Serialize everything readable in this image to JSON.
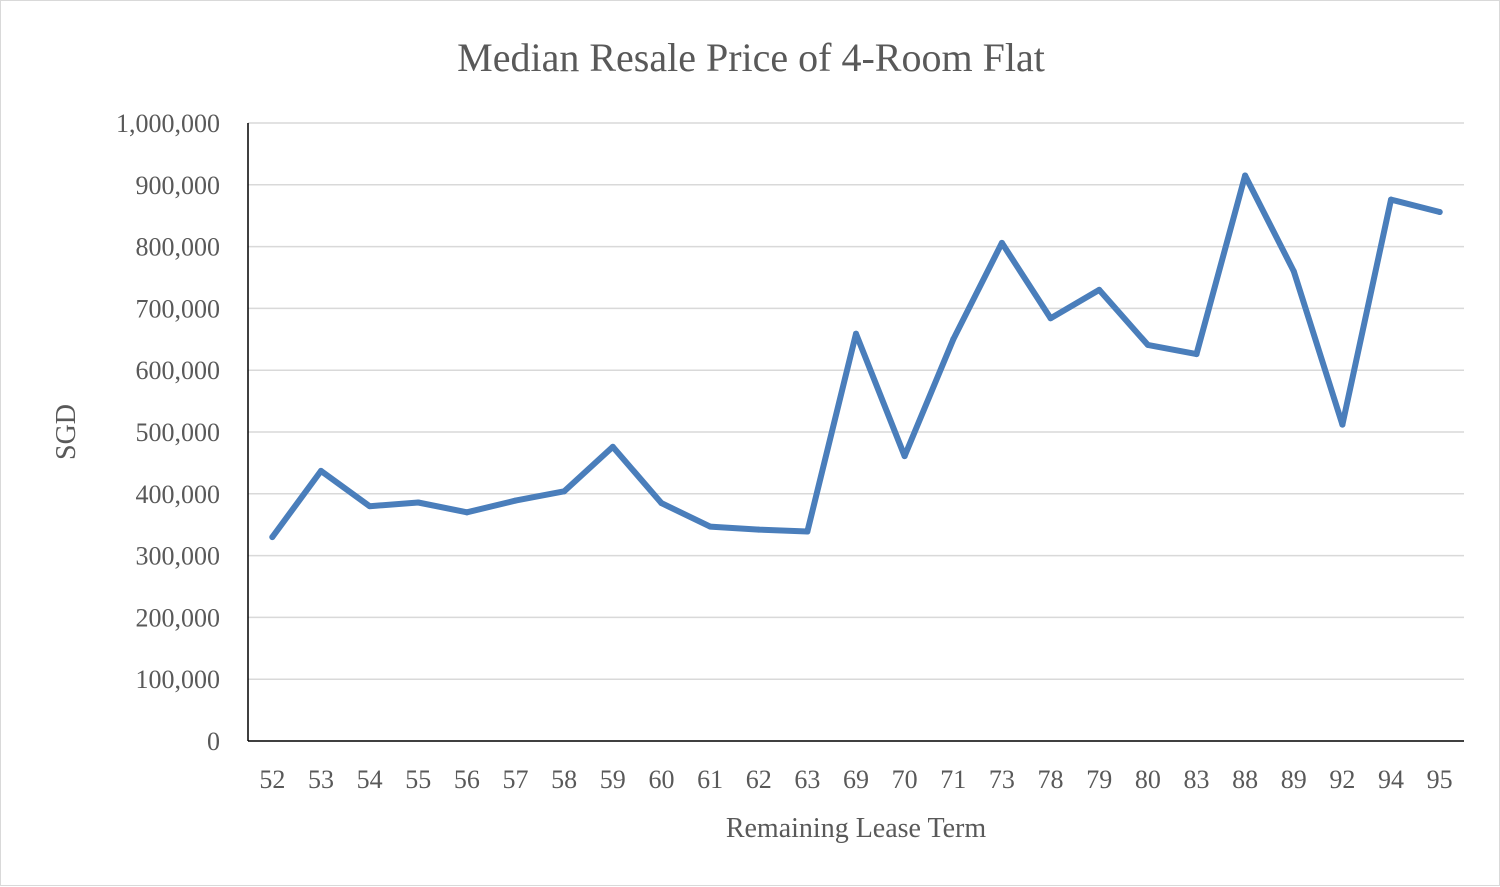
{
  "chart_data": {
    "type": "line",
    "title": "Median Resale Price of 4-Room Flat",
    "xlabel": "Remaining Lease Term",
    "ylabel": "SGD",
    "categories": [
      "52",
      "53",
      "54",
      "55",
      "56",
      "57",
      "58",
      "59",
      "60",
      "61",
      "62",
      "63",
      "69",
      "70",
      "71",
      "73",
      "78",
      "79",
      "80",
      "83",
      "88",
      "89",
      "92",
      "94",
      "95"
    ],
    "series": [
      {
        "values": [
          330000,
          437000,
          380000,
          386000,
          370000,
          389000,
          404000,
          476000,
          385000,
          347000,
          342000,
          339000,
          659000,
          461000,
          650000,
          806000,
          684000,
          730000,
          641000,
          626000,
          915000,
          760000,
          512000,
          876000,
          856000
        ],
        "color": "#4a7ebb"
      }
    ],
    "ylim": [
      0,
      1000000
    ],
    "yticks": [
      0,
      100000,
      200000,
      300000,
      400000,
      500000,
      600000,
      700000,
      800000,
      900000,
      1000000
    ],
    "ytick_labels": [
      "0",
      "100,000",
      "200,000",
      "300,000",
      "400,000",
      "500,000",
      "600,000",
      "700,000",
      "800,000",
      "900,000",
      "1,000,000"
    ],
    "grid": true,
    "legend": "none"
  }
}
